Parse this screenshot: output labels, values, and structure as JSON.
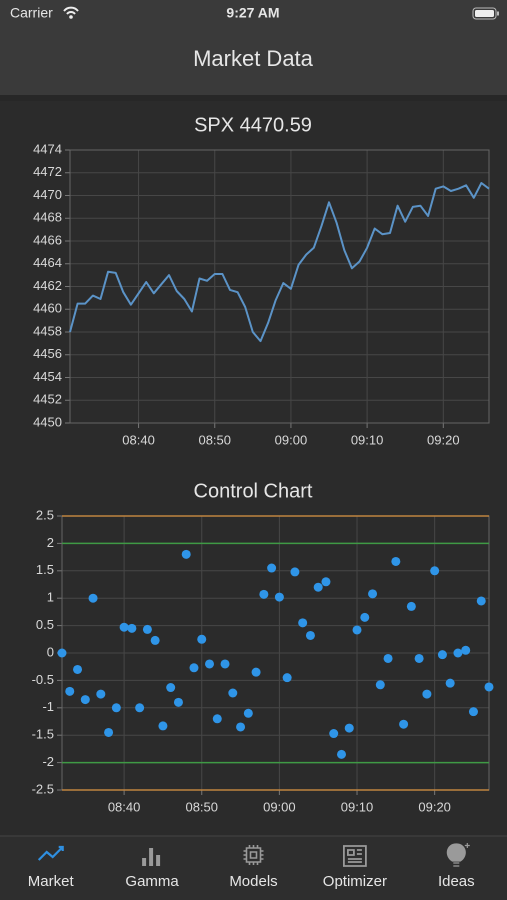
{
  "status_bar": {
    "carrier": "Carrier",
    "time": "9:27 AM"
  },
  "header": {
    "title": "Market Data"
  },
  "chart_data": [
    {
      "type": "line",
      "title": "SPX 4470.59",
      "color": "#5b93c7",
      "grid": true,
      "x": [
        "08:31",
        "08:32",
        "08:33",
        "08:34",
        "08:35",
        "08:36",
        "08:37",
        "08:38",
        "08:39",
        "08:40",
        "08:41",
        "08:42",
        "08:43",
        "08:44",
        "08:45",
        "08:46",
        "08:47",
        "08:48",
        "08:49",
        "08:50",
        "08:51",
        "08:52",
        "08:53",
        "08:54",
        "08:55",
        "08:56",
        "08:57",
        "08:58",
        "08:59",
        "09:00",
        "09:01",
        "09:02",
        "09:03",
        "09:04",
        "09:05",
        "09:06",
        "09:07",
        "09:08",
        "09:09",
        "09:10",
        "09:11",
        "09:12",
        "09:13",
        "09:14",
        "09:15",
        "09:16",
        "09:17",
        "09:18",
        "09:19",
        "09:20",
        "09:21",
        "09:22",
        "09:23",
        "09:24",
        "09:25",
        "09:26"
      ],
      "values": [
        4458.0,
        4460.5,
        4460.5,
        4461.2,
        4460.9,
        4463.3,
        4463.2,
        4461.5,
        4460.4,
        4461.4,
        4462.4,
        4461.4,
        4462.2,
        4463.0,
        4461.6,
        4460.9,
        4459.8,
        4462.7,
        4462.5,
        4463.1,
        4463.1,
        4461.7,
        4461.5,
        4460.2,
        4458.0,
        4457.2,
        4458.8,
        4460.8,
        4462.3,
        4461.8,
        4463.9,
        4464.8,
        4465.4,
        4467.3,
        4469.4,
        4467.6,
        4465.2,
        4463.6,
        4464.2,
        4465.4,
        4467.1,
        4466.6,
        4466.7,
        4469.1,
        4467.7,
        4469.0,
        4469.1,
        4468.2,
        4470.6,
        4470.8,
        4470.4,
        4470.6,
        4470.9,
        4469.8,
        4471.1,
        4470.6
      ],
      "xlim": [
        "08:31",
        "09:26"
      ],
      "xticks": [
        "08:40",
        "08:50",
        "09:00",
        "09:10",
        "09:20"
      ],
      "ylim": [
        4450,
        4474
      ],
      "yticks": [
        4450,
        4452,
        4454,
        4456,
        4458,
        4460,
        4462,
        4464,
        4466,
        4468,
        4470,
        4472,
        4474
      ]
    },
    {
      "type": "scatter",
      "title": "Control Chart",
      "color": "#2f95e8",
      "grid": true,
      "x": [
        "08:32",
        "08:33",
        "08:34",
        "08:35",
        "08:36",
        "08:37",
        "08:38",
        "08:39",
        "08:40",
        "08:41",
        "08:42",
        "08:43",
        "08:44",
        "08:45",
        "08:46",
        "08:47",
        "08:48",
        "08:49",
        "08:50",
        "08:51",
        "08:52",
        "08:53",
        "08:54",
        "08:55",
        "08:56",
        "08:57",
        "08:58",
        "08:59",
        "09:00",
        "09:01",
        "09:02",
        "09:03",
        "09:04",
        "09:05",
        "09:06",
        "09:07",
        "09:08",
        "09:09",
        "09:10",
        "09:11",
        "09:12",
        "09:13",
        "09:14",
        "09:15",
        "09:16",
        "09:17",
        "09:18",
        "09:19",
        "09:20",
        "09:21",
        "09:22",
        "09:23",
        "09:24",
        "09:25",
        "09:26",
        "09:27"
      ],
      "values": [
        0,
        -0.7,
        -0.3,
        -0.85,
        1.0,
        -0.75,
        -1.45,
        -1.0,
        0.47,
        0.45,
        -1.0,
        0.43,
        0.23,
        -1.33,
        -0.63,
        -0.9,
        1.8,
        -0.27,
        0.25,
        -0.2,
        -1.2,
        -0.2,
        -0.73,
        -1.35,
        -1.1,
        -0.35,
        1.07,
        1.55,
        1.02,
        -0.45,
        1.48,
        0.55,
        0.32,
        1.2,
        1.3,
        -1.47,
        -1.85,
        -1.37,
        0.42,
        0.65,
        1.08,
        -0.58,
        -0.1,
        1.67,
        -1.3,
        0.85,
        -0.1,
        -0.75,
        1.5,
        -0.03,
        -0.55,
        0.0,
        0.05,
        -1.07,
        0.95,
        -0.62
      ],
      "xlim": [
        "08:32",
        "09:27"
      ],
      "xticks": [
        "08:40",
        "08:50",
        "09:00",
        "09:10",
        "09:20"
      ],
      "ylim": [
        -2.5,
        2.5
      ],
      "yticks": [
        -2.5,
        -2,
        -1.5,
        -1,
        -0.5,
        0,
        0.5,
        1,
        1.5,
        2,
        2.5
      ],
      "limit_lines": [
        {
          "value": 2.5,
          "color": "#c08440"
        },
        {
          "value": 2,
          "color": "#3f9a45"
        },
        {
          "value": -2,
          "color": "#3f9a45"
        },
        {
          "value": -2.5,
          "color": "#c08440"
        }
      ]
    }
  ],
  "tab_bar": {
    "active": 0,
    "active_color": "#2f8fe0",
    "items": [
      "Market",
      "Gamma",
      "Models",
      "Optimizer",
      "Ideas"
    ]
  }
}
